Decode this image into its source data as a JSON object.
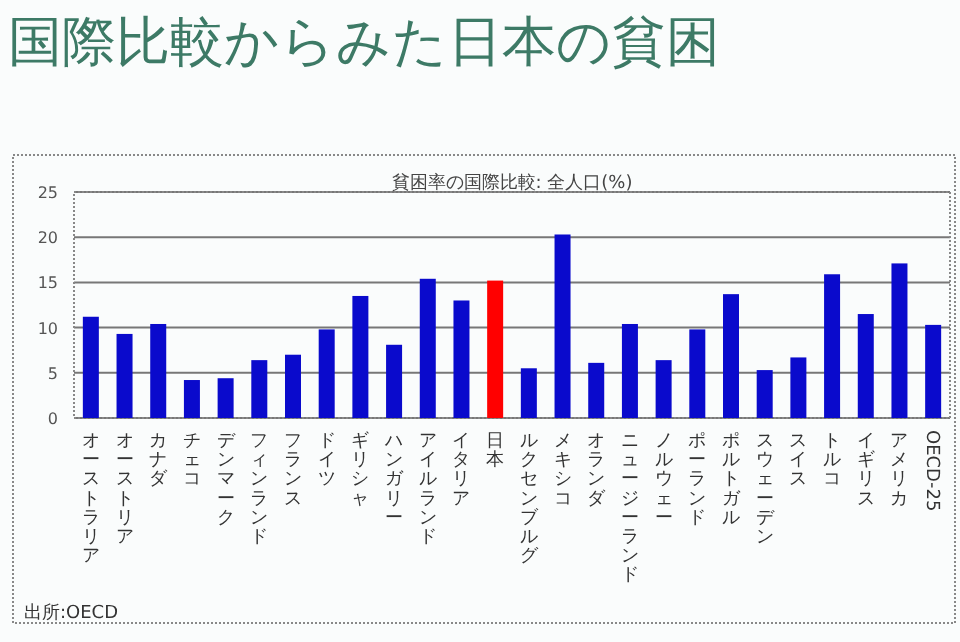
{
  "chart_data": {
    "type": "bar",
    "title": "国際比較からみた日本の貧困",
    "subtitle": "貧困率の国際比較:  全人口(%)",
    "categories": [
      "オーストラリア",
      "オーストリア",
      "カナダ",
      "チェコ",
      "デンマーク",
      "フィンランド",
      "フランス",
      "ドイツ",
      "ギリシャ",
      "ハンガリー",
      "アイルランド",
      "イタリア",
      "日本",
      "ルクセンブルグ",
      "メキシコ",
      "オランダ",
      "ニュージーランド",
      "ノルウェー",
      "ポーランド",
      "ポルトガル",
      "スウェーデン",
      "スイス",
      "トルコ",
      "イギリス",
      "アメリカ",
      "OECD-25"
    ],
    "values": [
      11.2,
      9.3,
      10.4,
      4.2,
      4.4,
      6.4,
      7.0,
      9.8,
      13.5,
      8.1,
      15.4,
      13.0,
      15.2,
      5.5,
      20.3,
      6.1,
      10.4,
      6.4,
      9.8,
      13.7,
      5.3,
      6.7,
      15.9,
      11.5,
      17.1,
      10.3
    ],
    "colors": [
      "#0a0acc",
      "#0a0acc",
      "#0a0acc",
      "#0a0acc",
      "#0a0acc",
      "#0a0acc",
      "#0a0acc",
      "#0a0acc",
      "#0a0acc",
      "#0a0acc",
      "#0a0acc",
      "#0a0acc",
      "#ff0000",
      "#0a0acc",
      "#0a0acc",
      "#0a0acc",
      "#0a0acc",
      "#0a0acc",
      "#0a0acc",
      "#0a0acc",
      "#0a0acc",
      "#0a0acc",
      "#0a0acc",
      "#0a0acc",
      "#0a0acc",
      "#0a0acc"
    ],
    "ylim": [
      0,
      25
    ],
    "yticks": [
      0,
      5,
      10,
      15,
      20,
      25
    ],
    "grid": "y",
    "annotations": [
      "出所:OECD"
    ]
  }
}
